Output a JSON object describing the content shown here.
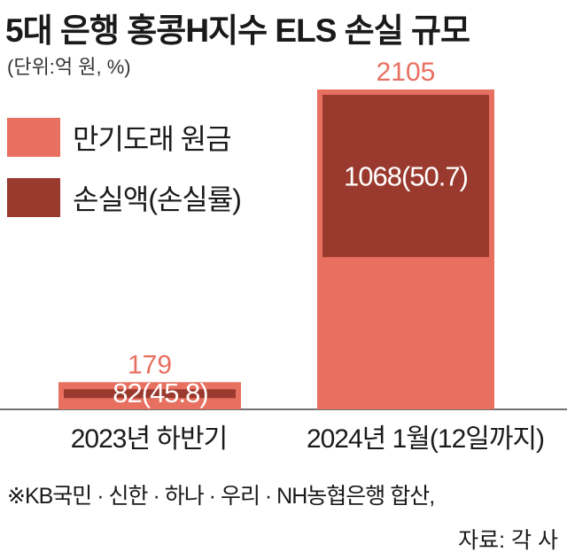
{
  "title": "5대 은행 홍콩H지수 ELS 손실 규모",
  "unit": "(단위:억 원, %)",
  "legend": [
    {
      "label": "만기도래 원금",
      "color": "#e87060"
    },
    {
      "label": "손실액(손실률)",
      "color": "#9a3a2e"
    }
  ],
  "footnote": "※KB국민 · 신한 · 하나 · 우리 · NH농협은행 합산,",
  "source": "자료: 각 사",
  "chart_data": {
    "type": "bar",
    "stacked": "overlay",
    "categories": [
      "2023년 하반기",
      "2024년 1월(12일까지)"
    ],
    "series": [
      {
        "name": "만기도래 원금",
        "values": [
          179,
          2105
        ],
        "color": "#e87060"
      },
      {
        "name": "손실액(손실률)",
        "values": [
          82,
          1068
        ],
        "rates": [
          45.8,
          50.7
        ],
        "color": "#9a3a2e"
      }
    ],
    "total_labels": [
      "179",
      "2105"
    ],
    "loss_labels": [
      "82(45.8)",
      "1068(50.7)"
    ],
    "ylim": [
      0,
      2105
    ],
    "grid": false,
    "legend_position": "top-left"
  }
}
